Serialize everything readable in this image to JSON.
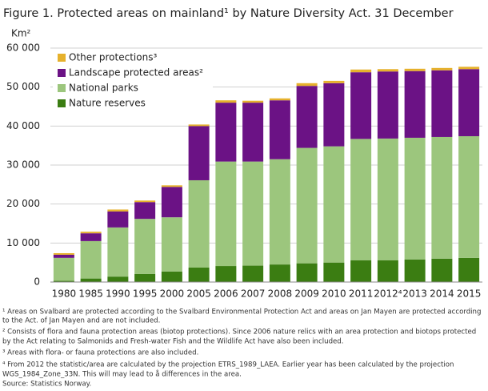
{
  "chart_data": {
    "type": "stacked-bar",
    "title": "Figure 1. Protected areas on mainland¹ by Nature Diversity Act. 31 December",
    "y_axis_label": "Km²",
    "categories": [
      "1980",
      "1985",
      "1990",
      "1995",
      "2000",
      "2005",
      "2006",
      "2007",
      "2008",
      "2009",
      "2010",
      "2011",
      "2012⁴",
      "2013",
      "2014",
      "2015"
    ],
    "series": [
      {
        "name": "Nature reserves",
        "color": "#3b7d12",
        "values": [
          300,
          900,
          1400,
          2100,
          2700,
          3700,
          4100,
          4200,
          4500,
          4800,
          5000,
          5600,
          5600,
          5800,
          6000,
          6200
        ]
      },
      {
        "name": "National parks",
        "color": "#9cc67d",
        "values": [
          5900,
          9600,
          12600,
          14100,
          13900,
          22400,
          26800,
          26700,
          27000,
          29600,
          29800,
          31100,
          31200,
          31200,
          31200,
          31200
        ]
      },
      {
        "name": "Landscape protected areas²",
        "color": "#6b1285",
        "values": [
          800,
          2000,
          4100,
          4300,
          7800,
          13900,
          15100,
          15100,
          15100,
          15900,
          16200,
          17100,
          17200,
          17100,
          17100,
          17200
        ]
      },
      {
        "name": "Other protections³",
        "color": "#e6b12c",
        "values": [
          400,
          400,
          500,
          400,
          400,
          400,
          600,
          500,
          500,
          700,
          600,
          700,
          600,
          600,
          600,
          600
        ]
      }
    ],
    "ylim": [
      0,
      60000
    ],
    "yticks": [
      0,
      {
        "value": 10000,
        "label": "10 000"
      },
      {
        "value": 20000,
        "label": "20 000"
      },
      {
        "value": 30000,
        "label": "30 000"
      },
      {
        "value": 40000,
        "label": "40 000"
      },
      {
        "value": 50000,
        "label": "50 000"
      },
      {
        "value": 60000,
        "label": "60 000"
      }
    ],
    "grid": true,
    "legend": "top-left",
    "footnotes": [
      "¹ Areas on Svalbard are protected according to the Svalbard Environmental Protection Act and areas on Jan Mayen are protected according",
      "to the Act. of Jan Mayen and are not included.",
      "² Consists of flora and fauna protection areas (biotop protections). Since 2006 nature relics with an area protection and biotops protected",
      "by the Act relating to Salmonids and Fresh-water Fish and the Wildlife Act have also been included.",
      "³ Areas with flora- or fauna protections are also included.",
      "⁴ From 2012 the statistic/area are calculated by the projection ETRS_1989_LAEA. Earlier year has been calculated by the projection",
      "WGS_1984_Zone_33N. This will may lead to å differences in the area.",
      "Source: Statistics Norway."
    ]
  }
}
